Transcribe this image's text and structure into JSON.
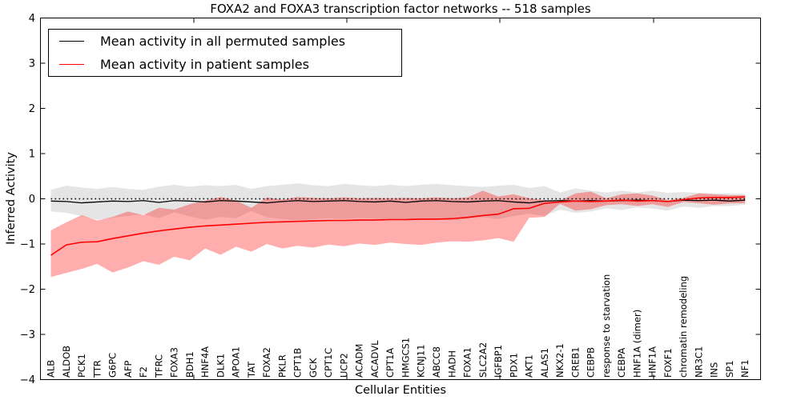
{
  "chart_data": {
    "type": "line",
    "title": "FOXA2 and FOXA3 transcription factor networks -- 518 samples",
    "xlabel": "Cellular Entities",
    "ylabel": "Inferred Activity",
    "ylim": [
      -4,
      4
    ],
    "ytick_labels": [
      "4",
      "3",
      "2",
      "1",
      "0",
      "−1",
      "−2",
      "−3",
      "−4"
    ],
    "ytick_values": [
      4,
      3,
      2,
      1,
      0,
      -1,
      -2,
      -3,
      -4
    ],
    "grid": false,
    "legend_position": "upper left",
    "zero_line": 0,
    "categories": [
      "ALB",
      "ALDOB",
      "PCK1",
      "TTR",
      "G6PC",
      "AFP",
      "F2",
      "TFRC",
      "FOXA3",
      "BDH1",
      "HNF4A",
      "DLK1",
      "APOA1",
      "TAT",
      "FOXA2",
      "PKLR",
      "CPT1B",
      "GCK",
      "CPT1C",
      "UCP2",
      "ACADM",
      "ACADVL",
      "CPT1A",
      "HMGCS1",
      "KCNJ11",
      "ABCC8",
      "HADH",
      "FOXA1",
      "SLC2A2",
      "IGFBP1",
      "PDX1",
      "AKT1",
      "ALAS1",
      "NKX2-1",
      "CREB1",
      "CEBPB",
      "response to starvation",
      "CEBPA",
      "HNF1A (dimer)",
      "HNF1A",
      "FOXF1",
      "chromatin remodeling",
      "NR3C1",
      "INS",
      "SP1",
      "NF1"
    ],
    "series": [
      {
        "name": "Mean activity in all permuted samples",
        "color": "#000000",
        "values": [
          -0.05,
          -0.06,
          -0.09,
          -0.07,
          -0.05,
          -0.06,
          -0.04,
          -0.08,
          -0.04,
          -0.05,
          -0.07,
          -0.04,
          -0.05,
          -0.07,
          -0.09,
          -0.06,
          -0.04,
          -0.06,
          -0.05,
          -0.04,
          -0.06,
          -0.07,
          -0.05,
          -0.08,
          -0.05,
          -0.04,
          -0.06,
          -0.07,
          -0.05,
          -0.04,
          -0.07,
          -0.09,
          -0.05,
          -0.04,
          -0.05,
          -0.04,
          -0.05,
          -0.04,
          -0.03,
          -0.04,
          -0.06,
          -0.03,
          -0.04,
          -0.03,
          -0.05,
          -0.03
        ]
      },
      {
        "name": "Mean activity in patient samples",
        "color": "#ff0000",
        "values": [
          -1.25,
          -1.02,
          -0.96,
          -0.95,
          -0.88,
          -0.82,
          -0.76,
          -0.71,
          -0.67,
          -0.63,
          -0.6,
          -0.58,
          -0.56,
          -0.54,
          -0.52,
          -0.51,
          -0.5,
          -0.49,
          -0.48,
          -0.48,
          -0.47,
          -0.47,
          -0.46,
          -0.46,
          -0.45,
          -0.45,
          -0.44,
          -0.41,
          -0.37,
          -0.34,
          -0.22,
          -0.21,
          -0.1,
          -0.07,
          -0.05,
          -0.06,
          -0.05,
          -0.03,
          -0.05,
          -0.04,
          -0.06,
          -0.02,
          0.02,
          0.03,
          0.03,
          0.04
        ]
      }
    ],
    "bands": [
      {
        "name": "permuted samples range",
        "color": "#000000",
        "opacity": 0.1,
        "upper": [
          0.2,
          0.29,
          0.25,
          0.22,
          0.26,
          0.22,
          0.2,
          0.27,
          0.31,
          0.27,
          0.3,
          0.28,
          0.31,
          0.22,
          0.28,
          0.31,
          0.34,
          0.3,
          0.28,
          0.33,
          0.3,
          0.28,
          0.31,
          0.28,
          0.31,
          0.33,
          0.3,
          0.28,
          0.26,
          0.29,
          0.31,
          0.24,
          0.28,
          0.14,
          0.23,
          0.18,
          0.14,
          0.18,
          0.14,
          0.18,
          0.13,
          0.15,
          0.13,
          0.12,
          0.12,
          0.11
        ],
        "lower": [
          -0.28,
          -0.31,
          -0.38,
          -0.46,
          -0.42,
          -0.38,
          -0.34,
          -0.43,
          -0.3,
          -0.39,
          -0.46,
          -0.4,
          -0.43,
          -0.27,
          -0.41,
          -0.45,
          -0.48,
          -0.45,
          -0.43,
          -0.45,
          -0.42,
          -0.44,
          -0.47,
          -0.44,
          -0.47,
          -0.45,
          -0.48,
          -0.44,
          -0.41,
          -0.45,
          -0.38,
          -0.33,
          -0.38,
          -0.24,
          -0.31,
          -0.28,
          -0.21,
          -0.25,
          -0.19,
          -0.22,
          -0.26,
          -0.17,
          -0.2,
          -0.16,
          -0.16,
          -0.13
        ]
      },
      {
        "name": "patient samples range",
        "color": "#ff0000",
        "opacity": 0.32,
        "upper": [
          -0.7,
          -0.52,
          -0.36,
          -0.48,
          -0.4,
          -0.28,
          -0.36,
          -0.2,
          -0.24,
          -0.12,
          -0.04,
          0.04,
          -0.04,
          -0.2,
          0.03,
          -0.02,
          0.04,
          0.02,
          0.01,
          0.03,
          0.01,
          0.02,
          0.01,
          0.02,
          0.01,
          0.03,
          0.01,
          0.03,
          0.18,
          0.05,
          0.1,
          0.01,
          -0.03,
          -0.04,
          0.12,
          0.16,
          0.01,
          0.1,
          0.12,
          0.07,
          -0.03,
          0.02,
          0.12,
          0.1,
          0.08,
          0.08
        ],
        "lower": [
          -1.73,
          -1.64,
          -1.55,
          -1.44,
          -1.63,
          -1.52,
          -1.38,
          -1.46,
          -1.28,
          -1.36,
          -1.1,
          -1.24,
          -1.06,
          -1.17,
          -1.0,
          -1.1,
          -1.04,
          -1.08,
          -1.01,
          -1.05,
          -0.99,
          -1.02,
          -0.97,
          -1.0,
          -1.02,
          -0.97,
          -0.94,
          -0.95,
          -0.92,
          -0.87,
          -0.95,
          -0.42,
          -0.4,
          -0.11,
          -0.26,
          -0.23,
          -0.14,
          -0.12,
          -0.16,
          -0.12,
          -0.18,
          -0.07,
          -0.1,
          -0.13,
          -0.1,
          -0.1
        ]
      }
    ]
  }
}
